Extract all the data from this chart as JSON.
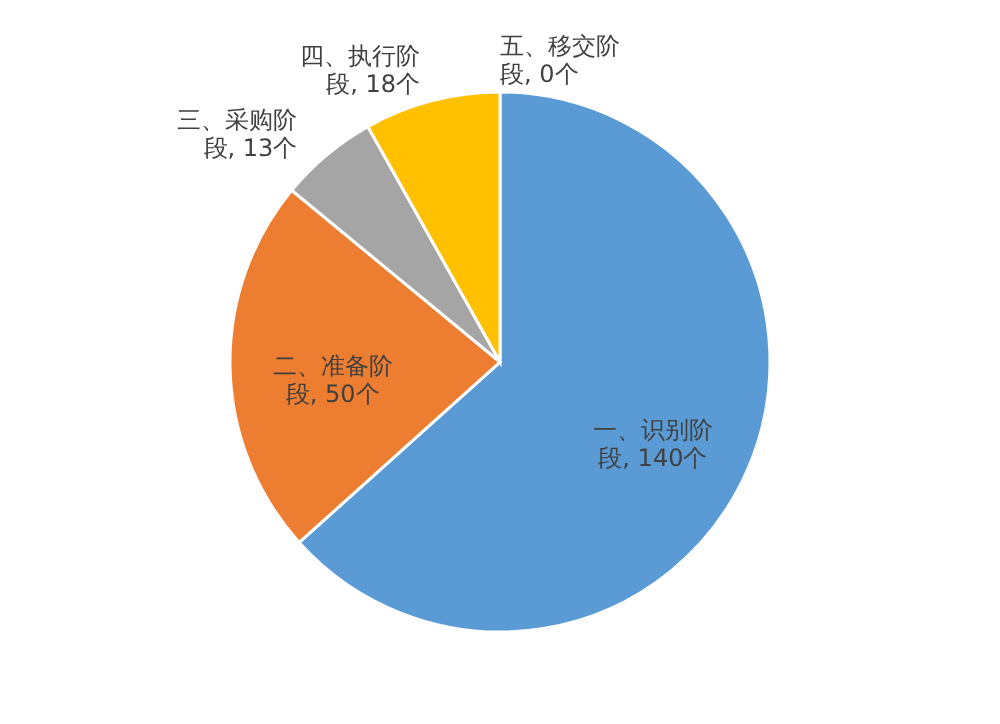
{
  "chart_data": {
    "type": "pie",
    "categories": [
      "五、移交阶段, 0个",
      "一、识别阶段, 140个",
      "二、准备阶段, 50个",
      "三、采购阶段, 13个",
      "四、执行阶段, 18个"
    ],
    "values": [
      0,
      140,
      50,
      13,
      18
    ],
    "colors": [
      "#5b9bd5",
      "#5b9bd5",
      "#ed7d31",
      "#a5a5a5",
      "#ffc000"
    ],
    "legend": false
  }
}
